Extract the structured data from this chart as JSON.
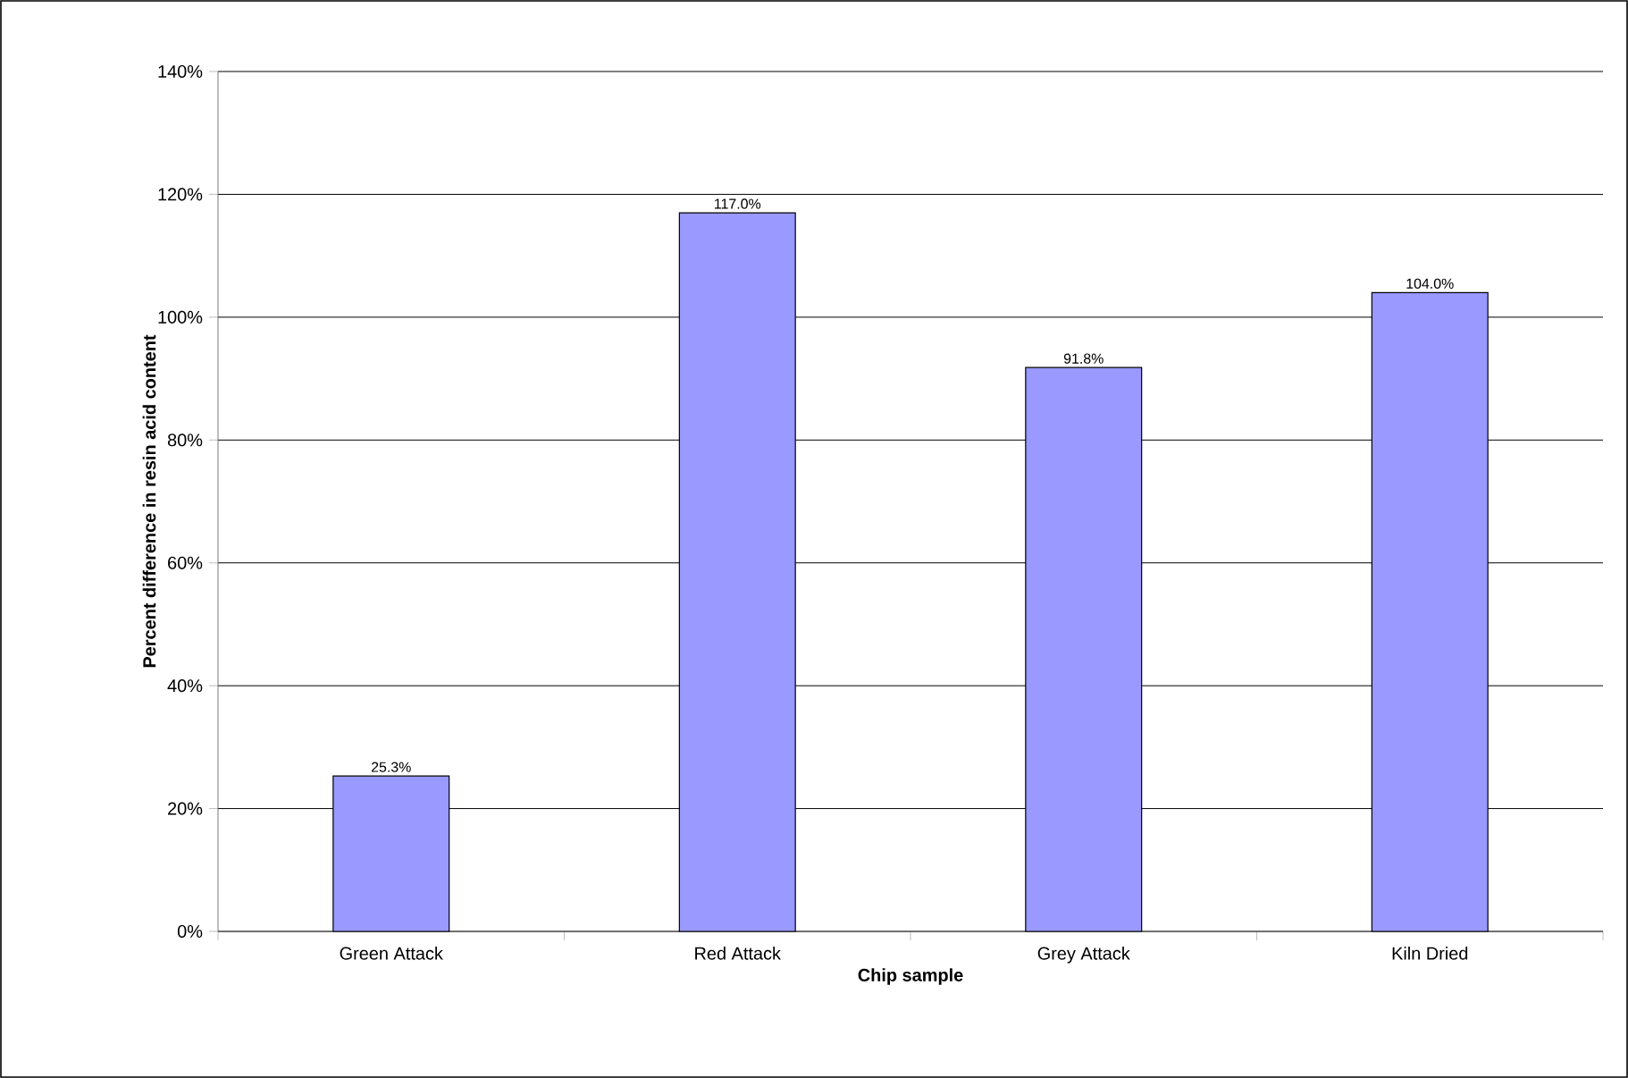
{
  "chart_data": {
    "type": "bar",
    "xlabel": "Chip sample",
    "ylabel": "Percent difference in resin acid content",
    "categories": [
      "Green Attack",
      "Red Attack",
      "Grey Attack",
      "Kiln Dried"
    ],
    "values": [
      25.3,
      117.0,
      91.8,
      104.0
    ],
    "value_labels": [
      "25.3%",
      "117.0%",
      "91.8%",
      "104.0%"
    ],
    "color": "#9999ff",
    "ylim": [
      0,
      140
    ],
    "yticks": [
      {
        "value": 0,
        "label": "0%"
      },
      {
        "value": 20,
        "label": "20%"
      },
      {
        "value": 40,
        "label": "40%"
      },
      {
        "value": 60,
        "label": "60%"
      },
      {
        "value": 80,
        "label": "80%"
      },
      {
        "value": 100,
        "label": "100%"
      },
      {
        "value": 120,
        "label": "120%"
      },
      {
        "value": 140,
        "label": "140%"
      }
    ],
    "grid": "y"
  }
}
